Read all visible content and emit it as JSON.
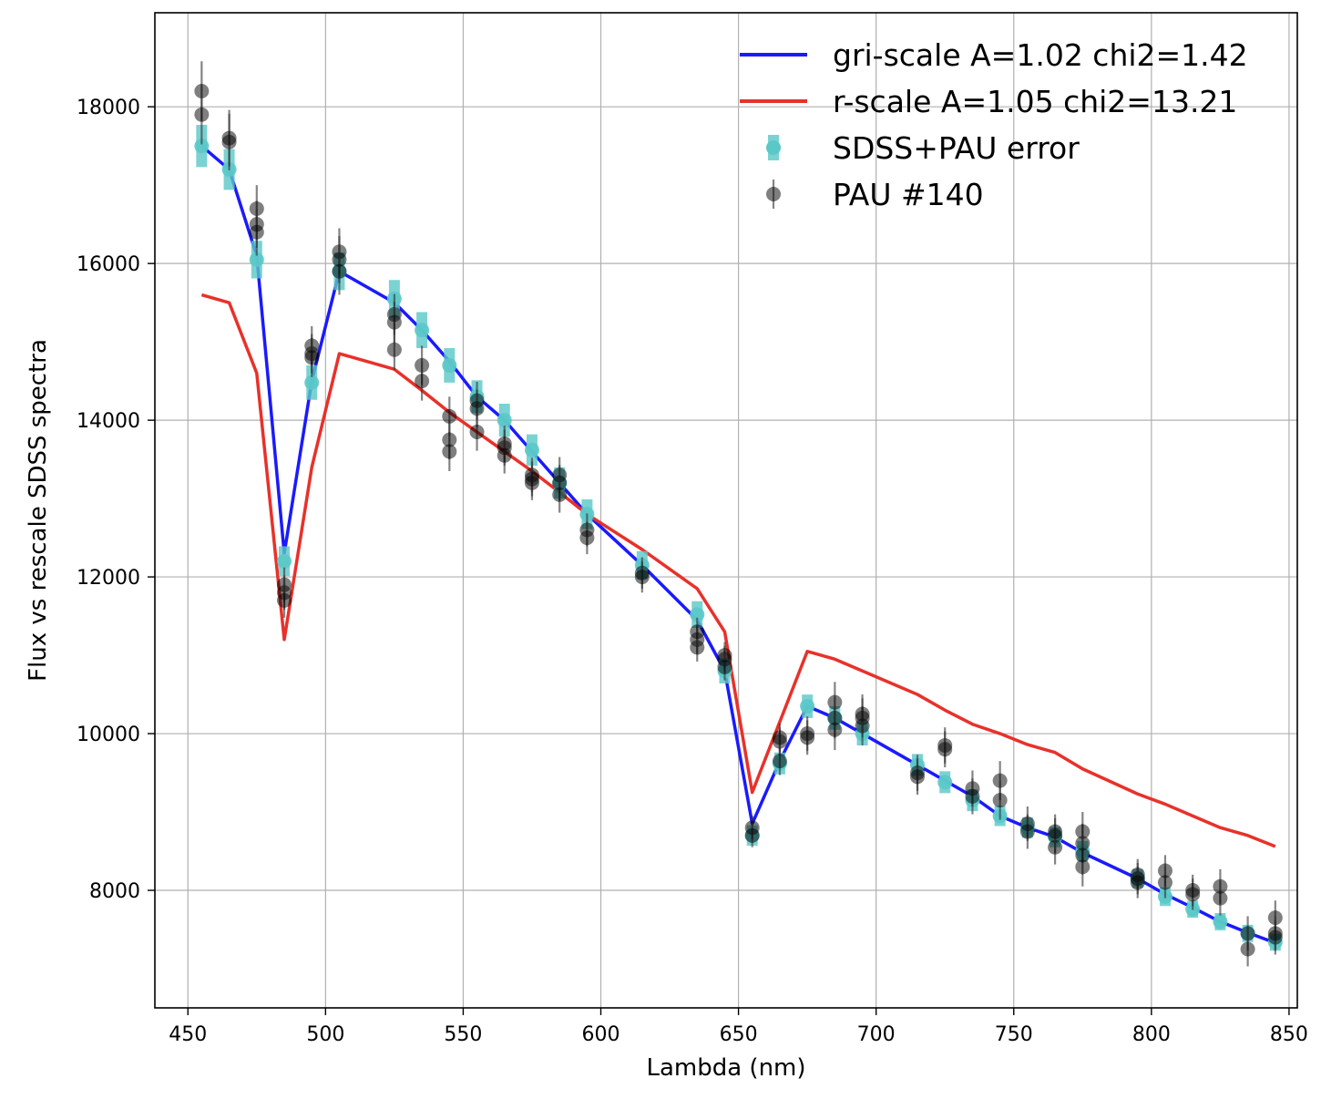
{
  "chart_data": {
    "type": "line",
    "title": "",
    "xlabel": "Lambda (nm)",
    "ylabel": "Flux vs rescale SDSS spectra",
    "xlim": [
      438,
      853
    ],
    "ylim": [
      6500,
      19200
    ],
    "xticks": [
      450,
      500,
      550,
      600,
      650,
      700,
      750,
      800,
      850
    ],
    "yticks": [
      8000,
      10000,
      12000,
      14000,
      16000,
      18000
    ],
    "grid": true,
    "legend_position": "top-right",
    "x": [
      455,
      465,
      475,
      485,
      495,
      505,
      525,
      535,
      545,
      555,
      565,
      575,
      585,
      595,
      615,
      635,
      645,
      655,
      665,
      675,
      685,
      695,
      715,
      725,
      735,
      745,
      755,
      765,
      775,
      795,
      805,
      815,
      825,
      835,
      845
    ],
    "series": [
      {
        "name": "gri-scale A=1.02 chi2=1.42",
        "kind": "line",
        "color": "#1a1aff",
        "y": [
          17500,
          17200,
          16100,
          12300,
          14500,
          15900,
          15500,
          15150,
          14750,
          14300,
          14000,
          13600,
          13200,
          12800,
          12150,
          11450,
          10800,
          8850,
          9650,
          10350,
          10200,
          10000,
          9600,
          9400,
          9200,
          8950,
          8800,
          8680,
          8480,
          8150,
          7950,
          7780,
          7600,
          7460,
          7330
        ]
      },
      {
        "name": "r-scale A=1.05 chi2=13.21",
        "kind": "line",
        "color": "#e8312a",
        "y": [
          15600,
          15500,
          14600,
          11200,
          13400,
          14850,
          14650,
          14380,
          14100,
          13850,
          13600,
          13350,
          13080,
          12800,
          12350,
          11850,
          11300,
          9250,
          10150,
          11050,
          10950,
          10800,
          10500,
          10300,
          10120,
          10000,
          9860,
          9760,
          9550,
          9230,
          9100,
          8950,
          8800,
          8700,
          8560
        ]
      },
      {
        "name": "SDSS+PAU error",
        "kind": "errorbar",
        "color": "#5bc8c8",
        "y": [
          17500,
          17200,
          16050,
          12200,
          14480,
          15900,
          15550,
          15150,
          14700,
          14300,
          14000,
          13620,
          13200,
          12800,
          12150,
          11520,
          10800,
          8700,
          9620,
          10350,
          10200,
          10000,
          9600,
          9380,
          9150,
          8950,
          8800,
          8680,
          8500,
          8150,
          7920,
          7760,
          7600,
          7450,
          7340
        ],
        "yerr": [
          270,
          260,
          240,
          190,
          220,
          240,
          240,
          230,
          220,
          210,
          210,
          200,
          200,
          190,
          180,
          170,
          160,
          130,
          140,
          150,
          150,
          150,
          140,
          140,
          140,
          130,
          130,
          130,
          130,
          120,
          120,
          110,
          110,
          110,
          110
        ]
      },
      {
        "name": "PAU #140",
        "kind": "errorbar",
        "color": "#444444",
        "points": [
          [
            455,
            18200,
            380
          ],
          [
            455,
            17900,
            380
          ],
          [
            465,
            17550,
            360
          ],
          [
            465,
            17600,
            360
          ],
          [
            475,
            16700,
            300
          ],
          [
            475,
            16500,
            300
          ],
          [
            475,
            16400,
            300
          ],
          [
            485,
            11900,
            220
          ],
          [
            485,
            11800,
            220
          ],
          [
            485,
            11700,
            220
          ],
          [
            495,
            14850,
            250
          ],
          [
            495,
            14950,
            250
          ],
          [
            495,
            14800,
            250
          ],
          [
            505,
            16150,
            300
          ],
          [
            505,
            16050,
            300
          ],
          [
            505,
            15900,
            300
          ],
          [
            525,
            15350,
            260
          ],
          [
            525,
            15250,
            260
          ],
          [
            525,
            14900,
            260
          ],
          [
            535,
            14700,
            250
          ],
          [
            535,
            14500,
            250
          ],
          [
            545,
            14050,
            250
          ],
          [
            545,
            13750,
            250
          ],
          [
            545,
            13600,
            250
          ],
          [
            555,
            14250,
            240
          ],
          [
            555,
            14150,
            240
          ],
          [
            555,
            13850,
            240
          ],
          [
            565,
            13650,
            230
          ],
          [
            565,
            13700,
            230
          ],
          [
            565,
            13550,
            230
          ],
          [
            575,
            13300,
            220
          ],
          [
            575,
            13200,
            220
          ],
          [
            575,
            13250,
            220
          ],
          [
            585,
            13300,
            230
          ],
          [
            585,
            13200,
            230
          ],
          [
            585,
            13050,
            230
          ],
          [
            595,
            12600,
            210
          ],
          [
            595,
            12500,
            210
          ],
          [
            615,
            12050,
            200
          ],
          [
            615,
            12000,
            200
          ],
          [
            635,
            11200,
            180
          ],
          [
            635,
            11100,
            180
          ],
          [
            635,
            11300,
            180
          ],
          [
            645,
            10950,
            170
          ],
          [
            645,
            11000,
            170
          ],
          [
            645,
            10850,
            170
          ],
          [
            655,
            8800,
            150
          ],
          [
            655,
            8700,
            150
          ],
          [
            665,
            9900,
            180
          ],
          [
            665,
            9950,
            180
          ],
          [
            665,
            9650,
            180
          ],
          [
            675,
            10000,
            220
          ],
          [
            675,
            9950,
            220
          ],
          [
            685,
            10400,
            260
          ],
          [
            685,
            10200,
            260
          ],
          [
            685,
            10050,
            260
          ],
          [
            695,
            10200,
            250
          ],
          [
            695,
            10100,
            250
          ],
          [
            695,
            10250,
            250
          ],
          [
            715,
            9500,
            230
          ],
          [
            715,
            9450,
            230
          ],
          [
            725,
            9850,
            230
          ],
          [
            725,
            9800,
            230
          ],
          [
            735,
            9300,
            230
          ],
          [
            735,
            9200,
            230
          ],
          [
            745,
            9400,
            250
          ],
          [
            745,
            9150,
            250
          ],
          [
            755,
            8850,
            220
          ],
          [
            755,
            8750,
            220
          ],
          [
            765,
            8700,
            220
          ],
          [
            765,
            8550,
            220
          ],
          [
            765,
            8750,
            220
          ],
          [
            775,
            8600,
            250
          ],
          [
            775,
            8300,
            250
          ],
          [
            775,
            8750,
            250
          ],
          [
            775,
            8450,
            250
          ],
          [
            795,
            8150,
            200
          ],
          [
            795,
            8200,
            200
          ],
          [
            795,
            8100,
            200
          ],
          [
            805,
            8250,
            200
          ],
          [
            805,
            8100,
            200
          ],
          [
            815,
            7950,
            200
          ],
          [
            815,
            8000,
            200
          ],
          [
            825,
            8050,
            220
          ],
          [
            825,
            7900,
            220
          ],
          [
            835,
            7450,
            220
          ],
          [
            835,
            7250,
            220
          ],
          [
            845,
            7400,
            220
          ],
          [
            845,
            7650,
            220
          ],
          [
            845,
            7450,
            220
          ]
        ]
      }
    ],
    "legend": [
      {
        "label": "gri-scale A=1.02 chi2=1.42",
        "marker": "line",
        "color": "#1a1aff"
      },
      {
        "label": "r-scale A=1.05 chi2=13.21",
        "marker": "line",
        "color": "#e8312a"
      },
      {
        "label": "SDSS+PAU error",
        "marker": "errorbar",
        "color": "#5bc8c8"
      },
      {
        "label": "PAU #140",
        "marker": "errorbar",
        "color": "#444444"
      }
    ]
  }
}
